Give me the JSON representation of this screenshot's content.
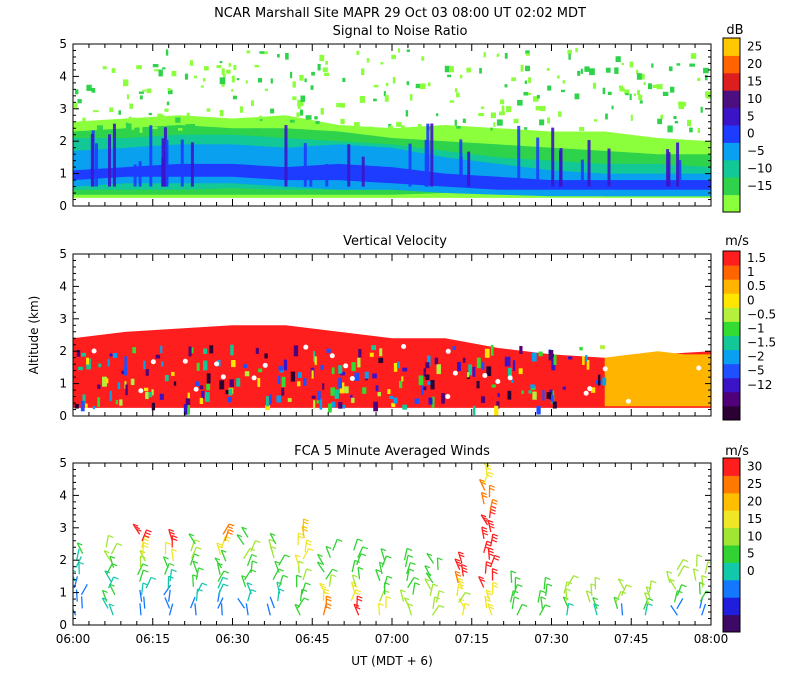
{
  "header": {
    "line1": "NCAR Marshall Site  MAPR 29 Oct 03  08:00 UT  02:02  MDT"
  },
  "colors": {
    "snr": [
      "#8cff3c",
      "#2fd24b",
      "#11c896",
      "#0aa0f0",
      "#1e3cff",
      "#3c14c8",
      "#4b0f82",
      "#dc1e1e",
      "#ff6400",
      "#ffc800"
    ],
    "vel": [
      "#2a0035",
      "#500078",
      "#3c14c8",
      "#1e50ff",
      "#0aa0f0",
      "#11c896",
      "#32dc32",
      "#b4f03c",
      "#ffe600",
      "#ffb400",
      "#ff6400",
      "#ff1e1e"
    ],
    "wind": [
      "#3c0a64",
      "#1e1edc",
      "#1478ff",
      "#11c8aa",
      "#32d232",
      "#a0e632",
      "#f0e628",
      "#ffbe00",
      "#ff7800",
      "#ff1e1e"
    ]
  },
  "chart_data": [
    {
      "type": "heatmap",
      "title": "Signal to Noise Ratio",
      "xlabel": "",
      "ylabel": "",
      "xlim": [
        "06:00",
        "08:00"
      ],
      "ylim": [
        0,
        5
      ],
      "x_tick_labels": [],
      "y_tick_labels": [
        "0",
        "1",
        "2",
        "3",
        "4",
        "5"
      ],
      "colorbar": {
        "unit": "dB",
        "labels": [
          "25",
          "20",
          "15",
          "10",
          "5",
          "0",
          "−5",
          "−10",
          "−15"
        ]
      },
      "layers": [
        {
          "range_dB": "-15 to -10",
          "x": [
            0,
            10,
            20,
            30,
            40,
            50,
            60,
            70,
            80,
            90,
            100,
            110,
            120
          ],
          "top_km": [
            2.6,
            2.7,
            2.8,
            2.7,
            2.8,
            2.5,
            2.4,
            2.5,
            2.4,
            2.3,
            2.3,
            2.1,
            2.0
          ],
          "bottom_km": [
            0.25,
            0.25,
            0.25,
            0.25,
            0.25,
            0.25,
            0.25,
            0.25,
            0.25,
            0.25,
            0.25,
            0.25,
            0.25
          ]
        },
        {
          "range_dB": "-10 to -5",
          "x": [
            0,
            10,
            20,
            30,
            40,
            50,
            60,
            70,
            80,
            90,
            100,
            110,
            120
          ],
          "top_km": [
            2.3,
            2.4,
            2.5,
            2.4,
            2.4,
            2.3,
            2.1,
            2.0,
            1.9,
            1.8,
            1.7,
            1.6,
            1.6
          ],
          "bottom_km": [
            0.35,
            0.35,
            0.35,
            0.35,
            0.35,
            0.35,
            0.35,
            0.4,
            0.4,
            0.35,
            0.35,
            0.35,
            0.35
          ]
        },
        {
          "range_dB": "-5 to 0",
          "x": [
            0,
            10,
            20,
            30,
            40,
            50,
            60,
            70,
            80,
            90,
            100,
            110,
            120
          ],
          "top_km": [
            2.1,
            2.1,
            2.2,
            2.2,
            2.1,
            2.0,
            1.9,
            1.7,
            1.5,
            1.4,
            1.3,
            1.3,
            1.2
          ],
          "bottom_km": [
            0.5,
            0.5,
            0.5,
            0.55,
            0.5,
            0.5,
            0.5,
            0.5,
            0.5,
            0.4,
            0.3,
            0.3,
            0.3
          ]
        },
        {
          "range_dB": "0 to 5",
          "x": [
            0,
            10,
            20,
            30,
            40,
            50,
            60,
            70,
            80,
            90,
            100,
            110,
            120
          ],
          "top_km": [
            1.7,
            1.8,
            1.9,
            1.9,
            1.8,
            1.9,
            1.8,
            1.5,
            1.3,
            1.1,
            1.0,
            1.0,
            1.0
          ],
          "bottom_km": [
            0.6,
            0.7,
            0.7,
            0.7,
            0.6,
            0.5,
            0.5,
            0.4,
            0.35,
            0.3,
            0.3,
            0.3,
            0.3
          ]
        },
        {
          "range_dB": "5 to 10",
          "x": [
            0,
            10,
            20,
            30,
            40,
            50,
            60,
            70,
            80,
            90,
            100,
            110,
            120
          ],
          "top_km": [
            1.1,
            1.2,
            1.3,
            1.3,
            1.2,
            1.3,
            1.2,
            1.0,
            0.9,
            0.8,
            0.8,
            0.8,
            0.8
          ],
          "bottom_km": [
            0.8,
            0.9,
            0.9,
            0.9,
            0.8,
            0.8,
            0.7,
            0.6,
            0.5,
            0.5,
            0.5,
            0.5,
            0.5
          ]
        }
      ]
    },
    {
      "type": "heatmap",
      "title": "Vertical Velocity",
      "xlabel": "",
      "ylabel": "Altitude (km)",
      "xlim": [
        "06:00",
        "08:00"
      ],
      "ylim": [
        0,
        5
      ],
      "x_tick_labels": [],
      "y_tick_labels": [
        "0",
        "1",
        "2",
        "3",
        "4",
        "5"
      ],
      "colorbar": {
        "unit": "m/s",
        "labels": [
          "1.5",
          "1",
          "0.5",
          "0",
          "−0.5",
          "−1",
          "−1.5",
          "−2",
          "−5",
          "−12"
        ]
      },
      "layers": [
        {
          "value_ms": "1.5 to 12",
          "x": [
            0,
            10,
            20,
            30,
            40,
            50,
            60,
            70,
            80,
            90,
            100,
            110,
            120
          ],
          "top_km": [
            2.4,
            2.6,
            2.7,
            2.8,
            2.8,
            2.6,
            2.4,
            2.4,
            2.1,
            1.9,
            1.8,
            1.9,
            2.0
          ],
          "bottom_km": [
            0.25,
            0.25,
            0.25,
            0.25,
            0.25,
            0.25,
            0.25,
            0.25,
            0.25,
            0.25,
            0.25,
            0.25,
            0.25
          ]
        },
        {
          "value_ms": "0.5 to 1.5",
          "x": [
            100,
            105,
            110,
            115,
            120
          ],
          "top_km": [
            1.8,
            1.9,
            2.0,
            1.9,
            1.9
          ],
          "bottom_km": [
            0.3,
            0.3,
            0.3,
            0.3,
            0.3
          ]
        }
      ]
    },
    {
      "type": "scatter",
      "title": "FCA 5 Minute Averaged Winds",
      "xlabel": "UT  (MDT + 6)",
      "ylabel": "",
      "xlim": [
        "06:00",
        "08:00"
      ],
      "ylim": [
        0,
        5
      ],
      "x_tick_labels": [
        "06:00",
        "06:15",
        "06:30",
        "06:45",
        "07:00",
        "07:15",
        "07:30",
        "07:45",
        "08:00"
      ],
      "y_tick_labels": [
        "0",
        "1",
        "2",
        "3",
        "4",
        "5"
      ],
      "colorbar": {
        "unit": "m/s",
        "labels": [
          "30",
          "25",
          "20",
          "15",
          "10",
          "5",
          "0"
        ]
      },
      "wind_columns_time": [
        "06:01",
        "06:07",
        "06:13",
        "06:18",
        "06:23",
        "06:28",
        "06:33",
        "06:38",
        "06:43",
        "06:48",
        "06:53",
        "06:58",
        "07:03",
        "07:08",
        "07:13",
        "07:18",
        "07:23",
        "07:28",
        "07:33",
        "07:38",
        "07:43",
        "07:48",
        "07:53",
        "07:58"
      ],
      "wind_top_km": [
        2.2,
        2.4,
        2.8,
        2.6,
        2.5,
        2.8,
        2.7,
        2.5,
        2.9,
        2.3,
        2.3,
        2.0,
        2.0,
        1.9,
        1.9,
        4.8,
        1.3,
        1.1,
        1.2,
        1.1,
        1.1,
        1.0,
        1.7,
        1.8
      ],
      "wind_speed_ms": [
        [
          6,
          8,
          8,
          10,
          9,
          12
        ],
        [
          10,
          12,
          11,
          13,
          15,
          16
        ],
        [
          8,
          10,
          14,
          16,
          20,
          30
        ],
        [
          6,
          8,
          10,
          14,
          18,
          28
        ],
        [
          6,
          10,
          12,
          14,
          15,
          12
        ],
        [
          6,
          10,
          12,
          14,
          20,
          26
        ],
        [
          8,
          10,
          12,
          14,
          16,
          14
        ],
        [
          8,
          10,
          12,
          14,
          16,
          14
        ],
        [
          12,
          14,
          16,
          18,
          20,
          22
        ],
        [
          26,
          20,
          16,
          14,
          14,
          14
        ],
        [
          28,
          20,
          16,
          14,
          14,
          14
        ],
        [
          18,
          16,
          14,
          14,
          14,
          14
        ],
        [
          16,
          16,
          14,
          14,
          14,
          14
        ],
        [
          16,
          16,
          16,
          14,
          14,
          14
        ],
        [
          18,
          16,
          20,
          26,
          30,
          28
        ],
        [
          20,
          28,
          30,
          30,
          25,
          20
        ],
        [
          12,
          12,
          14,
          14,
          14,
          14
        ],
        [
          12,
          12,
          14,
          14,
          14,
          14
        ],
        [
          10,
          14,
          16,
          16,
          16,
          16
        ],
        [
          10,
          12,
          16,
          16,
          16,
          16
        ],
        [
          6,
          12,
          16,
          16,
          16,
          16
        ],
        [
          10,
          12,
          16,
          16,
          16,
          16
        ],
        [
          6,
          12,
          14,
          16,
          16,
          16
        ],
        [
          6,
          12,
          14,
          16,
          16,
          16
        ]
      ]
    }
  ]
}
